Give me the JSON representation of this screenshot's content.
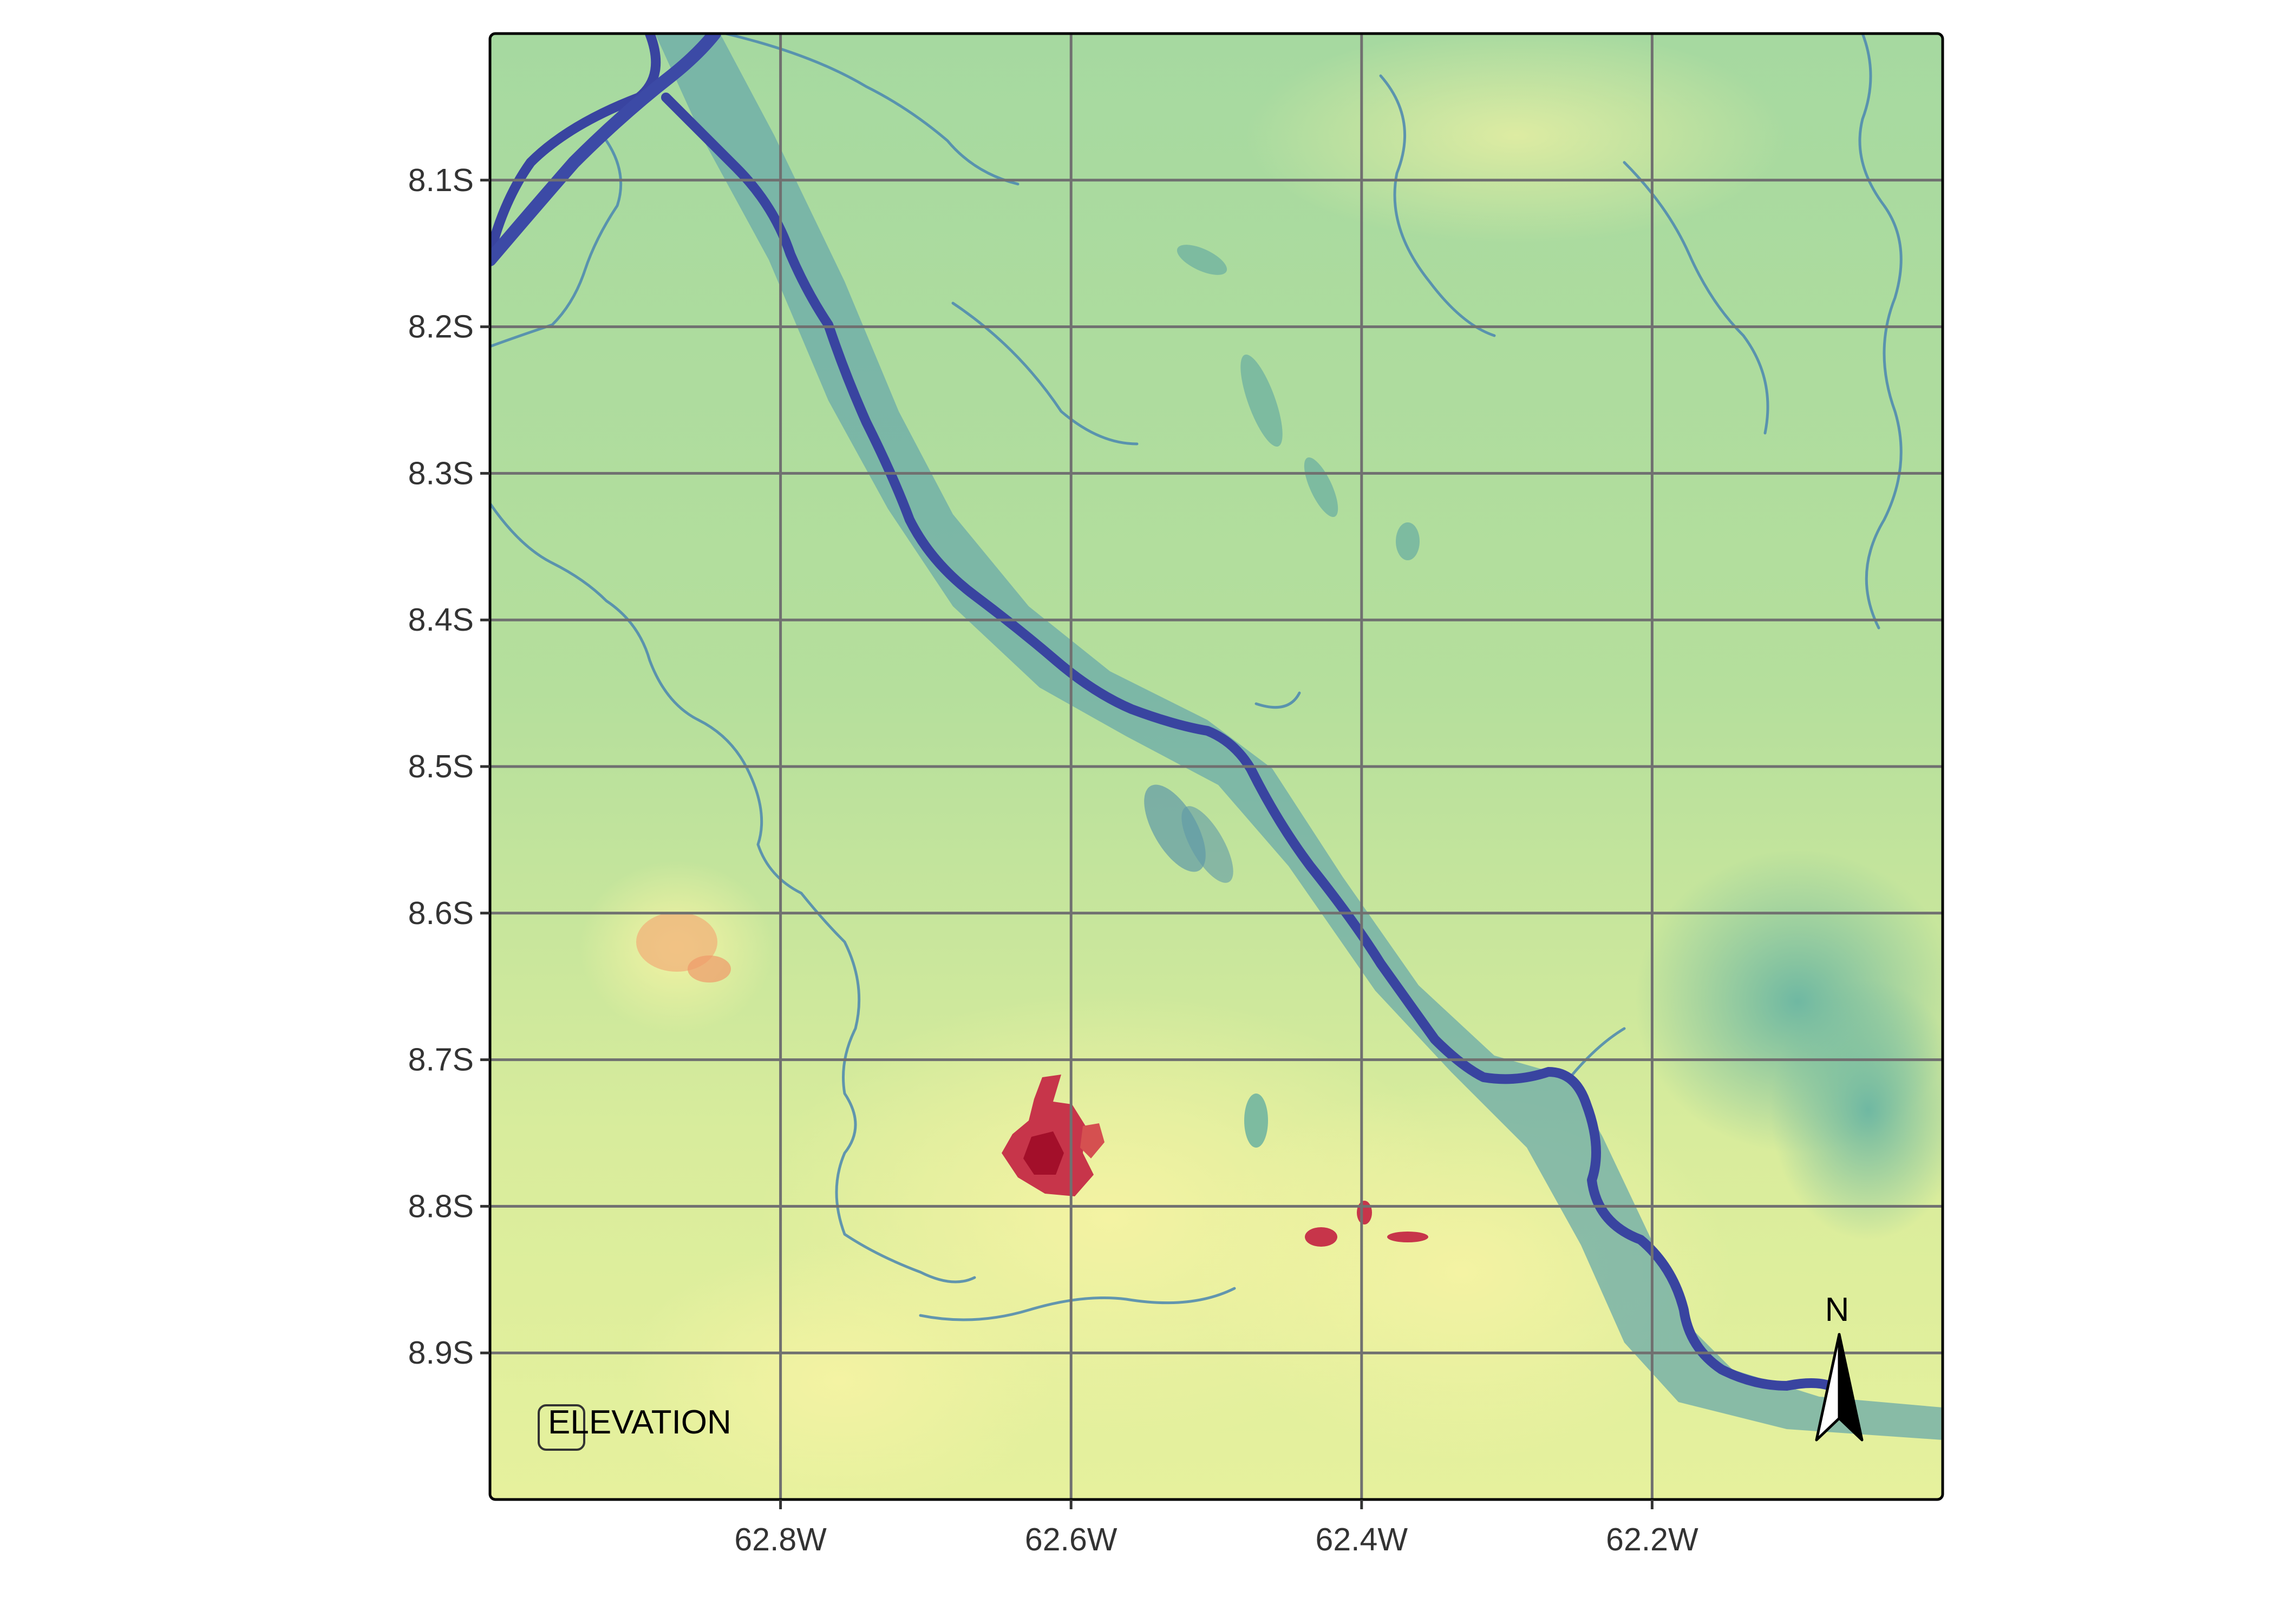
{
  "map": {
    "title": "ELEVATION",
    "north_label": "N",
    "longitude_range": [
      -63.0,
      -62.0
    ],
    "latitude_range": [
      -9.0,
      -8.0
    ],
    "x_ticks": [
      {
        "value": -62.8,
        "label": "62.8W"
      },
      {
        "value": -62.6,
        "label": "62.6W"
      },
      {
        "value": -62.4,
        "label": "62.4W"
      },
      {
        "value": -62.2,
        "label": "62.2W"
      }
    ],
    "y_ticks": [
      {
        "value": -8.1,
        "label": "8.1S"
      },
      {
        "value": -8.2,
        "label": "8.2S"
      },
      {
        "value": -8.3,
        "label": "8.3S"
      },
      {
        "value": -8.4,
        "label": "8.4S"
      },
      {
        "value": -8.5,
        "label": "8.5S"
      },
      {
        "value": -8.6,
        "label": "8.6S"
      },
      {
        "value": -8.7,
        "label": "8.7S"
      },
      {
        "value": -8.8,
        "label": "8.8S"
      },
      {
        "value": -8.9,
        "label": "8.9S"
      }
    ],
    "palette": {
      "high": "#c01732",
      "mid_high": "#f6dd8c",
      "mid": "#e8f09a",
      "mid_low": "#9fd59e",
      "low": "#5aa6a6",
      "water": "#3a52a8",
      "grid": "#707070",
      "frame": "#000000"
    }
  }
}
